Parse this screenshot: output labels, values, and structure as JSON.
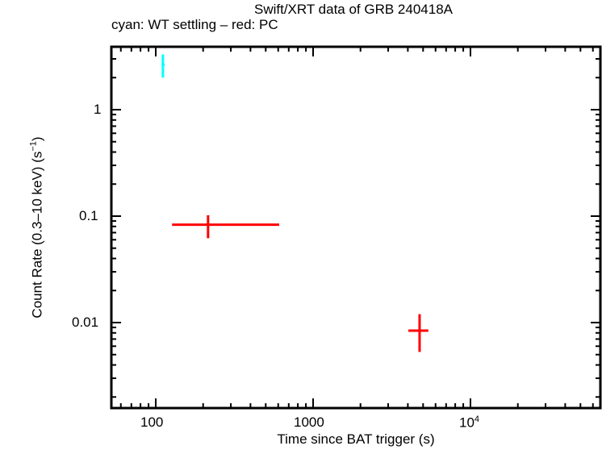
{
  "chart_data": {
    "type": "scatter",
    "title": "Swift/XRT data of GRB 240418A",
    "subtitle": "cyan: WT settling – red: PC",
    "xlabel": "Time since BAT trigger (s)",
    "ylabel": "Count Rate (0.3–10 keV) (s⁻¹)",
    "xscale": "log",
    "yscale": "log",
    "xlim": [
      52,
      67000
    ],
    "ylim": [
      0.0013,
      3.9
    ],
    "x_ticks": [
      "100",
      "1000",
      "10⁴"
    ],
    "y_ticks": [
      "1",
      "0.1",
      "0.01"
    ],
    "grid": false,
    "series": [
      {
        "name": "WT settling",
        "color": "#00ffff",
        "points": [
          {
            "x": 111,
            "xmin": 109,
            "xmax": 114,
            "y": 2.65,
            "ymin": 2.0,
            "ymax": 3.3
          }
        ]
      },
      {
        "name": "PC",
        "color": "#ff0000",
        "points": [
          {
            "x": 215,
            "xmin": 127,
            "xmax": 609,
            "y": 0.083,
            "ymin": 0.062,
            "ymax": 0.102
          },
          {
            "x": 4750,
            "xmin": 4030,
            "xmax": 5400,
            "y": 0.0084,
            "ymin": 0.0053,
            "ymax": 0.012
          }
        ]
      }
    ]
  },
  "labels": {
    "title": "Swift/XRT data of GRB 240418A",
    "subtitle": "cyan: WT settling – red: PC",
    "xlabel": "Time since BAT trigger (s)",
    "ylabel_main": "Count Rate (0.3–10 keV) (s",
    "ylabel_sup": "−1",
    "ylabel_end": ")",
    "xtick_100": "100",
    "xtick_1000": "1000",
    "xtick_1e4_base": "10",
    "xtick_1e4_exp": "4",
    "ytick_1": "1",
    "ytick_01": "0.1",
    "ytick_001": "0.01"
  }
}
